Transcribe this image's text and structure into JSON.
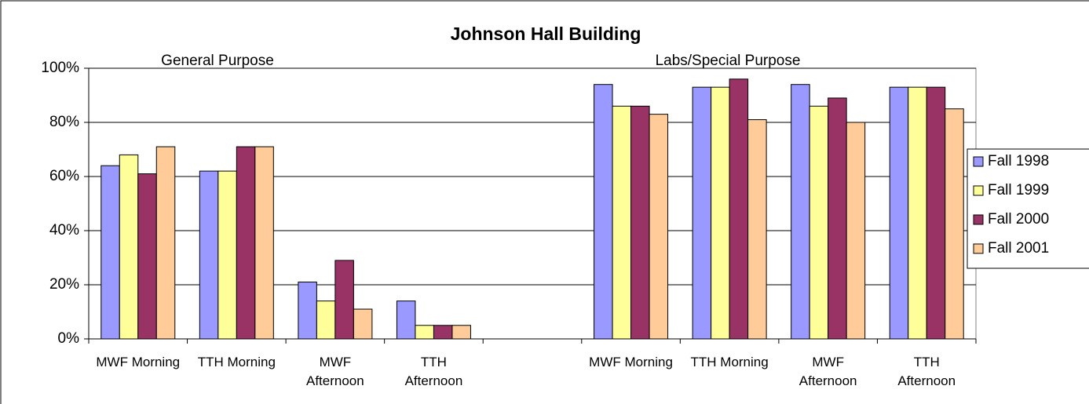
{
  "chart_data": {
    "type": "bar",
    "title": "Johnson Hall Building",
    "annotations": [
      "General Purpose",
      "Labs/Special Purpose"
    ],
    "categories": [
      "MWF Morning",
      "TTH Morning",
      "MWF Afternoon",
      "TTH Afternoon",
      null,
      "MWF Morning",
      "TTH Morning",
      "MWF Afternoon",
      "TTH Afternoon"
    ],
    "series": [
      {
        "name": "Fall 1998",
        "color": "#9999ff",
        "values": [
          64,
          62,
          21,
          14,
          null,
          94,
          93,
          94,
          93
        ]
      },
      {
        "name": "Fall 1999",
        "color": "#ffff99",
        "values": [
          68,
          62,
          14,
          5,
          null,
          86,
          93,
          86,
          93
        ]
      },
      {
        "name": "Fall 2000",
        "color": "#993366",
        "values": [
          61,
          71,
          29,
          5,
          null,
          86,
          96,
          89,
          93
        ]
      },
      {
        "name": "Fall 2001",
        "color": "#ffcc99",
        "values": [
          71,
          71,
          11,
          5,
          null,
          83,
          81,
          80,
          85
        ]
      }
    ],
    "ylim": [
      0,
      100
    ],
    "yticks": [
      {
        "value": 0,
        "label": "0%"
      },
      {
        "value": 20,
        "label": "20%"
      },
      {
        "value": 40,
        "label": "40%"
      },
      {
        "value": 60,
        "label": "60%"
      },
      {
        "value": 80,
        "label": "80%"
      },
      {
        "value": 100,
        "label": "100%"
      }
    ],
    "grid": true,
    "legend": "right"
  }
}
